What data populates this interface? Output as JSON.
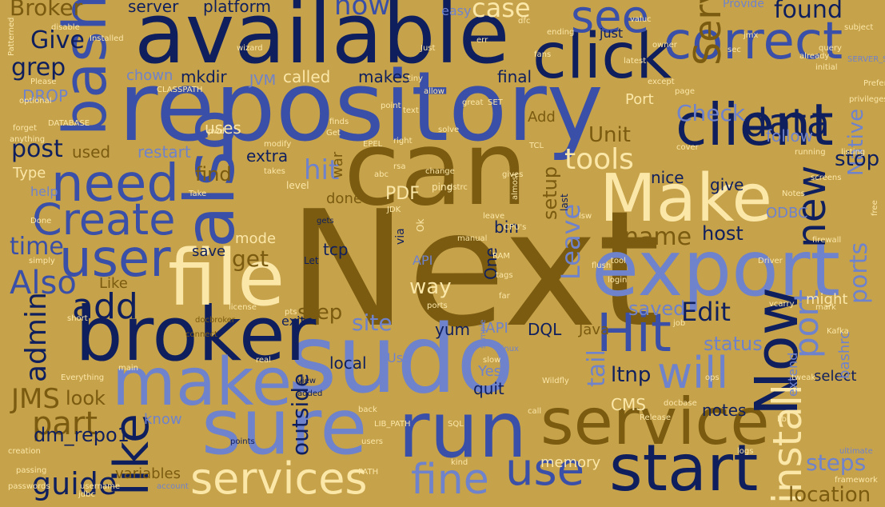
{
  "palette": {
    "background": "#c6a24a",
    "navy": "#0f1f5e",
    "blue": "#3a4fa8",
    "periwinkle": "#6f82cc",
    "olive": "#7a5b10",
    "cream": "#fbe7a8",
    "tan": "#a8852f"
  },
  "words": [
    {
      "text": "Next",
      "color": "olive",
      "weight": 10
    },
    {
      "text": "repository",
      "color": "blue",
      "weight": 10
    },
    {
      "text": "available",
      "color": "navy",
      "weight": 9
    },
    {
      "text": "sudo",
      "color": "periwinkle",
      "weight": 9
    },
    {
      "text": "can",
      "color": "olive",
      "weight": 8
    },
    {
      "text": "broker",
      "color": "navy",
      "weight": 8
    },
    {
      "text": "sure",
      "color": "periwinkle",
      "weight": 7
    },
    {
      "text": "run",
      "color": "blue",
      "weight": 7
    },
    {
      "text": "export",
      "color": "periwinkle",
      "weight": 7
    },
    {
      "text": "file",
      "color": "cream",
      "weight": 7
    },
    {
      "text": "also",
      "color": "blue",
      "weight": 7
    },
    {
      "text": "Make",
      "color": "cream",
      "weight": 7
    },
    {
      "text": "correct",
      "color": "blue",
      "weight": 6
    },
    {
      "text": "click",
      "color": "navy",
      "weight": 6
    },
    {
      "text": "client",
      "color": "navy",
      "weight": 6
    },
    {
      "text": "service",
      "color": "olive",
      "weight": 6
    },
    {
      "text": "start",
      "color": "navy",
      "weight": 6
    },
    {
      "text": "make",
      "color": "periwinkle",
      "weight": 6
    },
    {
      "text": "need",
      "color": "blue",
      "weight": 6
    },
    {
      "text": "bash",
      "color": "blue",
      "weight": 6
    },
    {
      "text": "Hit",
      "color": "blue",
      "weight": 6
    },
    {
      "text": "Now",
      "color": "navy",
      "weight": 6
    },
    {
      "text": "will",
      "color": "periwinkle",
      "weight": 5
    },
    {
      "text": "user",
      "color": "blue",
      "weight": 5
    },
    {
      "text": "services",
      "color": "cream",
      "weight": 5
    },
    {
      "text": "fine",
      "color": "periwinkle",
      "weight": 5
    },
    {
      "text": "use",
      "color": "blue",
      "weight": 5
    },
    {
      "text": "like",
      "color": "navy",
      "weight": 5
    },
    {
      "text": "Create",
      "color": "blue",
      "weight": 5
    },
    {
      "text": "install",
      "color": "cream",
      "weight": 5
    },
    {
      "text": "Server",
      "color": "olive",
      "weight": 5
    },
    {
      "text": "new",
      "color": "navy",
      "weight": 5
    },
    {
      "text": "see",
      "color": "blue",
      "weight": 5
    },
    {
      "text": "data",
      "color": "navy",
      "weight": 4
    },
    {
      "text": "port",
      "color": "periwinkle",
      "weight": 4
    },
    {
      "text": "part",
      "color": "olive",
      "weight": 4
    },
    {
      "text": "add",
      "color": "navy",
      "weight": 4
    },
    {
      "text": "guide",
      "color": "navy",
      "weight": 4
    },
    {
      "text": "JMS",
      "color": "olive",
      "weight": 4
    },
    {
      "text": "admin",
      "color": "navy",
      "weight": 4
    },
    {
      "text": "Also",
      "color": "blue",
      "weight": 4
    },
    {
      "text": "time",
      "color": "blue",
      "weight": 4
    },
    {
      "text": "post",
      "color": "navy",
      "weight": 4
    },
    {
      "text": "name",
      "color": "olive",
      "weight": 4
    },
    {
      "text": "tools",
      "color": "cream",
      "weight": 4
    },
    {
      "text": "hit",
      "color": "periwinkle",
      "weight": 4
    },
    {
      "text": "site",
      "color": "periwinkle",
      "weight": 4
    },
    {
      "text": "Edit",
      "color": "navy",
      "weight": 4
    },
    {
      "text": "steps",
      "color": "periwinkle",
      "weight": 4
    },
    {
      "text": "found",
      "color": "navy",
      "weight": 4
    },
    {
      "text": "case",
      "color": "cream",
      "weight": 4
    },
    {
      "text": "now",
      "color": "blue",
      "weight": 4
    },
    {
      "text": "Give",
      "color": "navy",
      "weight": 4
    },
    {
      "text": "grep",
      "color": "navy",
      "weight": 4
    },
    {
      "text": "Broker",
      "color": "olive",
      "weight": 4
    },
    {
      "text": "ports",
      "color": "periwinkle",
      "weight": 3
    },
    {
      "text": "location",
      "color": "olive",
      "weight": 3
    },
    {
      "text": "host",
      "color": "navy",
      "weight": 3
    },
    {
      "text": "get",
      "color": "olive",
      "weight": 3
    },
    {
      "text": "Check",
      "color": "periwinkle",
      "weight": 3
    },
    {
      "text": "Native",
      "color": "periwinkle",
      "weight": 3
    },
    {
      "text": "stop",
      "color": "navy",
      "weight": 3
    },
    {
      "text": "status",
      "color": "periwinkle",
      "weight": 3
    },
    {
      "text": "tail",
      "color": "periwinkle",
      "weight": 3
    },
    {
      "text": "ltnp",
      "color": "navy",
      "weight": 3
    },
    {
      "text": "step",
      "color": "olive",
      "weight": 3
    },
    {
      "text": "way",
      "color": "cream",
      "weight": 3
    },
    {
      "text": "outside",
      "color": "navy",
      "weight": 3
    },
    {
      "text": "Unit",
      "color": "olive",
      "weight": 3
    },
    {
      "text": "find",
      "color": "olive",
      "weight": 3
    },
    {
      "text": "Leave",
      "color": "periwinkle",
      "weight": 3
    },
    {
      "text": "setup",
      "color": "olive",
      "weight": 3
    },
    {
      "text": "saved",
      "color": "periwinkle",
      "weight": 3
    },
    {
      "text": "dm_repo1",
      "color": "navy",
      "weight": 2
    },
    {
      "text": "look",
      "color": "olive",
      "weight": 2
    },
    {
      "text": "server",
      "color": "navy",
      "weight": 2
    },
    {
      "text": "platform",
      "color": "navy",
      "weight": 2
    },
    {
      "text": "makes",
      "color": "navy",
      "weight": 2
    },
    {
      "text": "called",
      "color": "cream",
      "weight": 2
    },
    {
      "text": "mkdir",
      "color": "navy",
      "weight": 2
    },
    {
      "text": "chown",
      "color": "periwinkle",
      "weight": 2
    },
    {
      "text": "DROP",
      "color": "periwinkle",
      "weight": 2
    },
    {
      "text": "uses",
      "color": "cream",
      "weight": 2
    },
    {
      "text": "restart",
      "color": "periwinkle",
      "weight": 2
    },
    {
      "text": "used",
      "color": "olive",
      "weight": 2
    },
    {
      "text": "extra",
      "color": "navy",
      "weight": 2
    },
    {
      "text": "PDF",
      "color": "cream",
      "weight": 2
    },
    {
      "text": "bin",
      "color": "navy",
      "weight": 2
    },
    {
      "text": "mode",
      "color": "cream",
      "weight": 2
    },
    {
      "text": "save",
      "color": "navy",
      "weight": 2
    },
    {
      "text": "tcp",
      "color": "navy",
      "weight": 2
    },
    {
      "text": "done",
      "color": "olive",
      "weight": 2
    },
    {
      "text": "war",
      "color": "olive",
      "weight": 2
    },
    {
      "text": "yum",
      "color": "navy",
      "weight": 2
    },
    {
      "text": "IAPI",
      "color": "periwinkle",
      "weight": 2
    },
    {
      "text": "DQL",
      "color": "navy",
      "weight": 2
    },
    {
      "text": "Java",
      "color": "olive",
      "weight": 2
    },
    {
      "text": "CMS",
      "color": "cream",
      "weight": 2
    },
    {
      "text": "local",
      "color": "navy",
      "weight": 2
    },
    {
      "text": "quit",
      "color": "navy",
      "weight": 2
    },
    {
      "text": "Yes",
      "color": "periwinkle",
      "weight": 2
    },
    {
      "text": "notes",
      "color": "navy",
      "weight": 2
    },
    {
      "text": "select",
      "color": "navy",
      "weight": 2
    },
    {
      "text": "memory",
      "color": "cream",
      "weight": 2
    },
    {
      "text": "variables",
      "color": "olive",
      "weight": 2
    },
    {
      "text": "know",
      "color": "periwinkle",
      "weight": 2
    },
    {
      "text": "give",
      "color": "navy",
      "weight": 2
    },
    {
      "text": "nice",
      "color": "navy",
      "weight": 2
    },
    {
      "text": "follow",
      "color": "periwinkle",
      "weight": 2
    },
    {
      "text": "ODBC",
      "color": "periwinkle",
      "weight": 2
    },
    {
      "text": "Add",
      "color": "olive",
      "weight": 2
    },
    {
      "text": "Port",
      "color": "cream",
      "weight": 2
    },
    {
      "text": "final",
      "color": "navy",
      "weight": 2
    },
    {
      "text": "easy",
      "color": "periwinkle",
      "weight": 2
    },
    {
      "text": "Type",
      "color": "cream",
      "weight": 2
    },
    {
      "text": "help",
      "color": "periwinkle",
      "weight": 2
    },
    {
      "text": "Like",
      "color": "olive",
      "weight": 2
    },
    {
      "text": "API",
      "color": "periwinkle",
      "weight": 2
    },
    {
      "text": "One",
      "color": "navy",
      "weight": 2
    },
    {
      "text": "might",
      "color": "cream",
      "weight": 2
    },
    {
      "text": "just",
      "color": "navy",
      "weight": 2
    },
    {
      "text": "bashrc",
      "color": "periwinkle",
      "weight": 2
    },
    {
      "text": "extend",
      "color": "periwinkle",
      "weight": 2
    },
    {
      "text": "exit",
      "color": "navy",
      "weight": 2
    },
    {
      "text": "JVM",
      "color": "periwinkle",
      "weight": 2
    },
    {
      "text": "Provide",
      "color": "periwinkle",
      "weight": 1
    },
    {
      "text": "via",
      "color": "navy",
      "weight": 1
    },
    {
      "text": "level",
      "color": "cream",
      "weight": 1
    },
    {
      "text": "Use",
      "color": "periwinkle",
      "weight": 1
    },
    {
      "text": "last",
      "color": "navy",
      "weight": 1
    },
    {
      "text": "Driver",
      "color": "cream",
      "weight": 1
    },
    {
      "text": "docbroker",
      "color": "olive",
      "weight": 1
    },
    {
      "text": "connect",
      "color": "olive",
      "weight": 1
    },
    {
      "text": "passwords",
      "color": "cream",
      "weight": 1
    },
    {
      "text": "username",
      "color": "cream",
      "weight": 1
    },
    {
      "text": "account",
      "color": "periwinkle",
      "weight": 1
    },
    {
      "text": "creation",
      "color": "cream",
      "weight": 1
    },
    {
      "text": "points",
      "color": "navy",
      "weight": 1
    },
    {
      "text": "PATH",
      "color": "cream",
      "weight": 1
    },
    {
      "text": "kind",
      "color": "cream",
      "weight": 1
    },
    {
      "text": "SQL",
      "color": "cream",
      "weight": 1
    },
    {
      "text": "added",
      "color": "navy",
      "weight": 1
    },
    {
      "text": "view",
      "color": "navy",
      "weight": 1
    },
    {
      "text": "real",
      "color": "cream",
      "weight": 1
    },
    {
      "text": "main",
      "color": "cream",
      "weight": 1
    },
    {
      "text": "Everything",
      "color": "cream",
      "weight": 1
    },
    {
      "text": "Wildfly",
      "color": "cream",
      "weight": 1
    },
    {
      "text": "Linux",
      "color": "periwinkle",
      "weight": 1
    },
    {
      "text": "Release",
      "color": "cream",
      "weight": 1
    },
    {
      "text": "slow",
      "color": "cream",
      "weight": 1
    },
    {
      "text": "back",
      "color": "cream",
      "weight": 1
    },
    {
      "text": "call",
      "color": "cream",
      "weight": 1
    },
    {
      "text": "ultimate",
      "color": "periwinkle",
      "weight": 1
    },
    {
      "text": "tweak",
      "color": "cream",
      "weight": 1
    },
    {
      "text": "RAM",
      "color": "cream",
      "weight": 1
    },
    {
      "text": "tags",
      "color": "cream",
      "weight": 1
    },
    {
      "text": "far",
      "color": "cream",
      "weight": 1
    },
    {
      "text": "gets",
      "color": "navy",
      "weight": 1
    },
    {
      "text": "Let",
      "color": "navy",
      "weight": 1
    },
    {
      "text": "pts",
      "color": "cream",
      "weight": 1
    },
    {
      "text": "license",
      "color": "cream",
      "weight": 1
    },
    {
      "text": "short",
      "color": "cream",
      "weight": 1
    },
    {
      "text": "login",
      "color": "cream",
      "weight": 1
    },
    {
      "text": "tool",
      "color": "cream",
      "weight": 1
    },
    {
      "text": "JDK",
      "color": "cream",
      "weight": 1
    },
    {
      "text": "dstrc",
      "color": "cream",
      "weight": 1
    },
    {
      "text": "ping",
      "color": "cream",
      "weight": 1
    },
    {
      "text": "sample",
      "color": "periwinkle",
      "weight": 1
    },
    {
      "text": "abc",
      "color": "cream",
      "weight": 1
    },
    {
      "text": "right",
      "color": "cream",
      "weight": 1
    },
    {
      "text": "Get",
      "color": "cream",
      "weight": 1
    },
    {
      "text": "finds",
      "color": "cream",
      "weight": 1
    },
    {
      "text": "TCL",
      "color": "cream",
      "weight": 1
    },
    {
      "text": "SET",
      "color": "cream",
      "weight": 1
    },
    {
      "text": "CLASSPATH",
      "color": "cream",
      "weight": 1
    },
    {
      "text": "optional",
      "color": "cream",
      "weight": 1
    },
    {
      "text": "forget",
      "color": "cream",
      "weight": 1
    },
    {
      "text": "anything",
      "color": "cream",
      "weight": 1
    },
    {
      "text": "Please",
      "color": "cream",
      "weight": 1
    },
    {
      "text": "Done",
      "color": "cream",
      "weight": 1
    },
    {
      "text": "simply",
      "color": "cream",
      "weight": 1
    },
    {
      "text": "passing",
      "color": "cream",
      "weight": 1
    },
    {
      "text": "query",
      "color": "cream",
      "weight": 1
    },
    {
      "text": "subject",
      "color": "cream",
      "weight": 1
    },
    {
      "text": "listing",
      "color": "cream",
      "weight": 1
    },
    {
      "text": "initial",
      "color": "cream",
      "weight": 1
    },
    {
      "text": "already",
      "color": "cream",
      "weight": 1
    },
    {
      "text": "latest",
      "color": "cream",
      "weight": 1
    },
    {
      "text": "except",
      "color": "cream",
      "weight": 1
    },
    {
      "text": "page",
      "color": "cream",
      "weight": 1
    },
    {
      "text": "running",
      "color": "cream",
      "weight": 1
    },
    {
      "text": "screens",
      "color": "cream",
      "weight": 1
    },
    {
      "text": "Notes",
      "color": "cream",
      "weight": 1
    },
    {
      "text": "framework",
      "color": "cream",
      "weight": 1
    },
    {
      "text": "cover",
      "color": "cream",
      "weight": 1
    },
    {
      "text": "great",
      "color": "cream",
      "weight": 1
    },
    {
      "text": "solve",
      "color": "cream",
      "weight": 1
    },
    {
      "text": "fans",
      "color": "cream",
      "weight": 1
    },
    {
      "text": "ending",
      "color": "cream",
      "weight": 1
    },
    {
      "text": "valuc",
      "color": "cream",
      "weight": 1
    },
    {
      "text": "owner",
      "color": "cream",
      "weight": 1
    },
    {
      "text": "disable",
      "color": "cream",
      "weight": 1
    },
    {
      "text": "Patterned",
      "color": "cream",
      "weight": 1
    },
    {
      "text": "Installed",
      "color": "cream",
      "weight": 1
    },
    {
      "text": "wizard",
      "color": "cream",
      "weight": 1
    },
    {
      "text": "Just",
      "color": "cream",
      "weight": 1
    },
    {
      "text": "text",
      "color": "cream",
      "weight": 1
    },
    {
      "text": "tiny",
      "color": "cream",
      "weight": 1
    },
    {
      "text": "allow",
      "color": "cream",
      "weight": 1
    },
    {
      "text": "point",
      "color": "cream",
      "weight": 1
    },
    {
      "text": "EPEL",
      "color": "cream",
      "weight": 1
    },
    {
      "text": "modify",
      "color": "cream",
      "weight": 1
    },
    {
      "text": "takes",
      "color": "cream",
      "weight": 1
    },
    {
      "text": "Take",
      "color": "cream",
      "weight": 1
    },
    {
      "text": "leave",
      "color": "cream",
      "weight": 1
    },
    {
      "text": "CPU's",
      "color": "cream",
      "weight": 1
    },
    {
      "text": "almost",
      "color": "cream",
      "weight": 1
    },
    {
      "text": "gives",
      "color": "cream",
      "weight": 1
    },
    {
      "text": "change",
      "color": "cream",
      "weight": 1
    },
    {
      "text": "jdbc",
      "color": "cream",
      "weight": 1
    },
    {
      "text": "users",
      "color": "cream",
      "weight": 1
    },
    {
      "text": "manual",
      "color": "cream",
      "weight": 1
    },
    {
      "text": "ports",
      "color": "cream",
      "weight": 1
    },
    {
      "text": "free",
      "color": "cream",
      "weight": 1
    },
    {
      "text": "SERVER_STARTUP",
      "color": "periwinkle",
      "weight": 1
    },
    {
      "text": "LIB_PATH",
      "color": "cream",
      "weight": 1
    },
    {
      "text": "DATABASE",
      "color": "cream",
      "weight": 1
    },
    {
      "text": "privileges",
      "color": "cream",
      "weight": 1
    },
    {
      "text": "Prefer",
      "color": "cream",
      "weight": 1
    },
    {
      "text": "rsa",
      "color": "cream",
      "weight": 1
    },
    {
      "text": "docbase",
      "color": "cream",
      "weight": 1
    },
    {
      "text": "lsw",
      "color": "cream",
      "weight": 1
    },
    {
      "text": "flush",
      "color": "cream",
      "weight": 1
    },
    {
      "text": "mark",
      "color": "cream",
      "weight": 1
    },
    {
      "text": "firewall",
      "color": "cream",
      "weight": 1
    },
    {
      "text": "Kafka",
      "color": "cream",
      "weight": 1
    },
    {
      "text": "vcarry",
      "color": "cream",
      "weight": 1
    },
    {
      "text": "jmx",
      "color": "cream",
      "weight": 1
    },
    {
      "text": "sec",
      "color": "cream",
      "weight": 1
    },
    {
      "text": "job",
      "color": "cream",
      "weight": 1
    },
    {
      "text": "ops",
      "color": "cream",
      "weight": 1
    },
    {
      "text": "lib",
      "color": "cream",
      "weight": 1
    },
    {
      "text": "logs",
      "color": "cream",
      "weight": 1
    },
    {
      "text": "err",
      "color": "cream",
      "weight": 1
    },
    {
      "text": "dfc",
      "color": "cream",
      "weight": 1
    },
    {
      "text": "pwd",
      "color": "cream",
      "weight": 1
    },
    {
      "text": "Ok",
      "color": "cream",
      "weight": 1
    },
    {
      "text": "Java",
      "color": "periwinkle",
      "weight": 1
    }
  ]
}
